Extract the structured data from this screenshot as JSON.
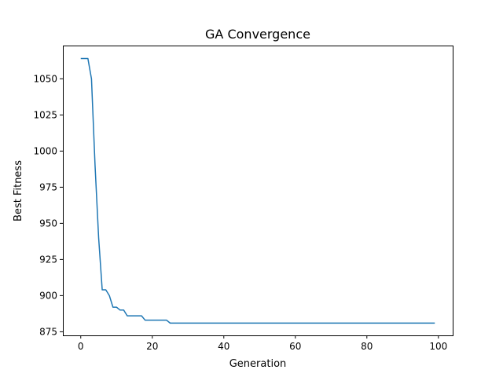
{
  "chart_data": {
    "type": "line",
    "title": "GA Convergence",
    "xlabel": "Generation",
    "ylabel": "Best Fitness",
    "xlim": [
      -5,
      104
    ],
    "ylim": [
      872.5,
      1073
    ],
    "xticks": [
      0,
      20,
      40,
      60,
      80,
      100
    ],
    "yticks": [
      875,
      900,
      925,
      950,
      975,
      1000,
      1025,
      1050
    ],
    "grid": false,
    "line_color": "#1f77b4",
    "series": [
      {
        "x": [
          0,
          1,
          2,
          3,
          4,
          5,
          6,
          7,
          8,
          9,
          10,
          11,
          12,
          13,
          14,
          15,
          16,
          17,
          18,
          19,
          20,
          21,
          22,
          23,
          24,
          25,
          26,
          27,
          28,
          29,
          30,
          31,
          32,
          33,
          34,
          35,
          36,
          37,
          38,
          39,
          40,
          41,
          42,
          43,
          44,
          45,
          46,
          47,
          48,
          49,
          50,
          51,
          52,
          53,
          54,
          55,
          56,
          57,
          58,
          59,
          60,
          61,
          62,
          63,
          64,
          65,
          66,
          67,
          68,
          69,
          70,
          71,
          72,
          73,
          74,
          75,
          76,
          77,
          78,
          79,
          80,
          81,
          82,
          83,
          84,
          85,
          86,
          87,
          88,
          89,
          90,
          91,
          92,
          93,
          94,
          95,
          96,
          97,
          98,
          99
        ],
        "y": [
          1064,
          1064,
          1064,
          1050,
          990,
          940,
          904,
          904,
          900,
          892,
          892,
          890,
          890,
          886,
          886,
          886,
          886,
          886,
          883,
          883,
          883,
          883,
          883,
          883,
          883,
          881,
          881,
          881,
          881,
          881,
          881,
          881,
          881,
          881,
          881,
          881,
          881,
          881,
          881,
          881,
          881,
          881,
          881,
          881,
          881,
          881,
          881,
          881,
          881,
          881,
          881,
          881,
          881,
          881,
          881,
          881,
          881,
          881,
          881,
          881,
          881,
          881,
          881,
          881,
          881,
          881,
          881,
          881,
          881,
          881,
          881,
          881,
          881,
          881,
          881,
          881,
          881,
          881,
          881,
          881,
          881,
          881,
          881,
          881,
          881,
          881,
          881,
          881,
          881,
          881,
          881,
          881,
          881,
          881,
          881,
          881,
          881,
          881,
          881,
          881
        ]
      }
    ]
  }
}
